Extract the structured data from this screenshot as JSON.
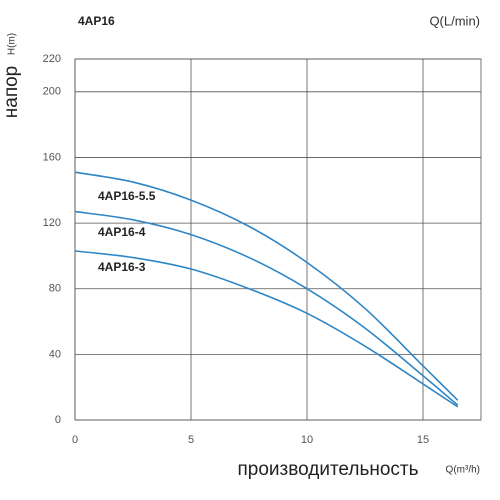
{
  "chart_data": {
    "type": "line",
    "title": "4AP16",
    "top_label": "Q(L/min)",
    "ylabel": "напор",
    "ylabel_unit": "H(m)",
    "xlabel": "производительность",
    "xlabel_unit": "Q(m³/h)",
    "x": [
      0,
      2.5,
      5,
      7.5,
      10,
      12.5,
      15,
      16.5
    ],
    "series": [
      {
        "name": "4AP16-5.5",
        "color": "#2f86c6",
        "values": [
          151,
          145,
          134,
          118,
          96,
          68,
          33,
          12
        ]
      },
      {
        "name": "4AP16-4",
        "color": "#2f86c6",
        "values": [
          127,
          122,
          113,
          99,
          80,
          56,
          27,
          9
        ]
      },
      {
        "name": "4AP16-3",
        "color": "#2f86c6",
        "values": [
          103,
          99,
          92,
          80,
          65,
          45,
          22,
          8
        ]
      }
    ],
    "xlim": [
      0,
      17.5
    ],
    "xticks": [
      0,
      5,
      10,
      15
    ],
    "ylim": [
      0,
      220
    ],
    "yticks": [
      0,
      40,
      80,
      120,
      160,
      200,
      220
    ],
    "grid": true
  }
}
